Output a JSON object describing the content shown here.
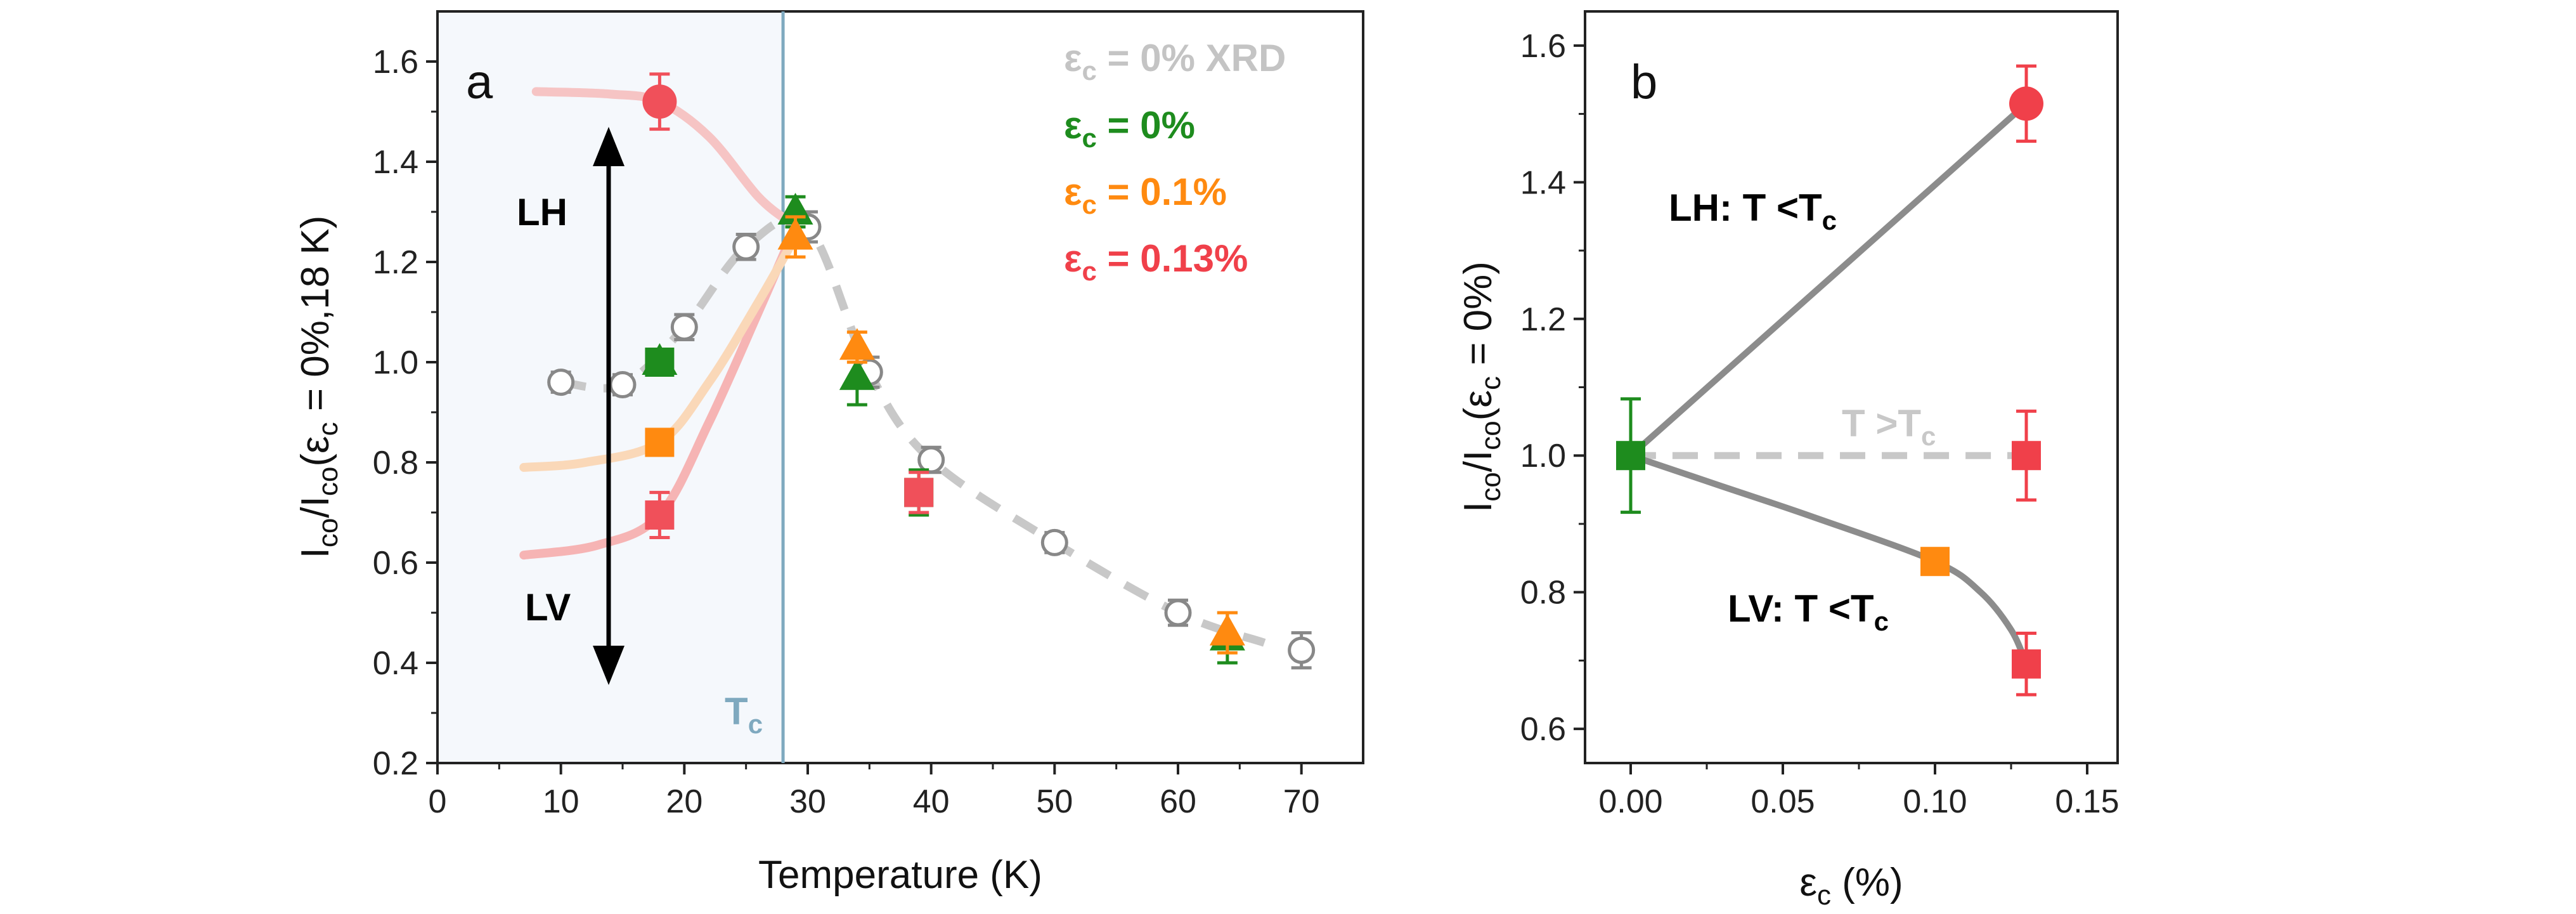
{
  "chart_data": [
    {
      "type": "scatter",
      "panel_label": "a",
      "xlabel": "Temperature (K)",
      "ylabel": {
        "a": "I",
        "b": "co",
        "c": "/I",
        "d": "co",
        "e": "(ε",
        "f": "c",
        "g": " = 0%,18 K)"
      },
      "xlim": [
        0,
        75
      ],
      "ylim": [
        0.2,
        1.7
      ],
      "xticks": [
        "0",
        "10",
        "20",
        "30",
        "40",
        "50",
        "60",
        "70"
      ],
      "xtick_values": [
        0,
        10,
        20,
        30,
        40,
        50,
        60,
        70
      ],
      "yticks": [
        "0.2",
        "0.4",
        "0.6",
        "0.8",
        "1.0",
        "1.2",
        "1.4",
        "1.6"
      ],
      "ytick_values": [
        0.2,
        0.4,
        0.6,
        0.8,
        1.0,
        1.2,
        1.4,
        1.6
      ],
      "tc_value": 28,
      "tc_label": {
        "main": "T",
        "sub": "c"
      },
      "annotations": {
        "lh": "LH",
        "lv": "LV"
      },
      "legend": [
        {
          "prefix": "ε",
          "sub": "c",
          "text": " = 0% XRD",
          "color": "#c4c4c4"
        },
        {
          "prefix": "ε",
          "sub": "c",
          "text": " = 0%",
          "color": "#1e8c1e"
        },
        {
          "prefix": "ε",
          "sub": "c",
          "text": " = 0.1%",
          "color": "#ff8a10"
        },
        {
          "prefix": "ε",
          "sub": "c",
          "text": " = 0.13%",
          "color": "#f0404a"
        }
      ],
      "series": [
        {
          "name": "ε_c = 0% XRD",
          "marker": "open-circle",
          "color": "#888888",
          "x": [
            10,
            15,
            20,
            25,
            30,
            35,
            40,
            50,
            60,
            70
          ],
          "y": [
            0.96,
            0.955,
            1.07,
            1.23,
            1.27,
            0.98,
            0.805,
            0.64,
            0.5,
            0.425
          ],
          "err": [
            0.02,
            0.02,
            0.025,
            0.025,
            0.03,
            0.03,
            0.025,
            0.02,
            0.025,
            0.035
          ]
        },
        {
          "name": "ε_c = 0%",
          "marker": "triangle",
          "color": "#1e8c1e",
          "x": [
            18,
            29,
            34,
            64
          ],
          "y": [
            1.0,
            1.3,
            0.97,
            0.45
          ],
          "err": [
            0.025,
            0.03,
            0.055,
            0.05
          ]
        },
        {
          "name": "ε_c = 0% square",
          "marker": "square",
          "color": "#1e8c1e",
          "x": [
            18,
            39
          ],
          "y": [
            1.0,
            0.74
          ],
          "err": [
            0.02,
            0.045
          ]
        },
        {
          "name": "ε_c = 0.1%",
          "marker": "triangle",
          "color": "#ff8a10",
          "x": [
            29,
            34,
            64
          ],
          "y": [
            1.25,
            1.03,
            0.46
          ],
          "err": [
            0.04,
            0.03,
            0.04
          ]
        },
        {
          "name": "ε_c = 0.1% square",
          "marker": "square",
          "color": "#ff8a10",
          "x": [
            18
          ],
          "y": [
            0.84
          ],
          "err": [
            0.01
          ]
        },
        {
          "name": "ε_c = 0.13%",
          "marker": "circle",
          "color": "#f0505a",
          "x": [
            18
          ],
          "y": [
            1.52
          ],
          "err": [
            0.055
          ]
        },
        {
          "name": "ε_c = 0.13% square",
          "marker": "square",
          "color": "#f0505a",
          "x": [
            18,
            39
          ],
          "y": [
            0.695,
            0.74
          ],
          "err": [
            0.045,
            0.04
          ]
        }
      ],
      "guide_curves": [
        {
          "name": "xrd-guide",
          "color": "#c8c8c8",
          "dashed": true,
          "x": [
            10,
            15,
            20,
            25,
            30,
            35,
            40,
            50,
            60,
            67
          ],
          "y": [
            0.96,
            0.955,
            1.07,
            1.23,
            1.27,
            0.98,
            0.805,
            0.64,
            0.5,
            0.44
          ]
        },
        {
          "name": "red-guide",
          "color": "#f6c4c4",
          "dashed": false,
          "x": [
            8,
            14,
            18,
            22,
            26,
            28.5
          ],
          "y": [
            1.54,
            1.535,
            1.52,
            1.45,
            1.33,
            1.28
          ]
        },
        {
          "name": "red-low-guide",
          "color": "#f6b4b4",
          "dashed": false,
          "x": [
            7,
            13,
            18,
            22,
            26,
            29
          ],
          "y": [
            0.615,
            0.635,
            0.695,
            0.88,
            1.1,
            1.27
          ]
        },
        {
          "name": "orange-guide",
          "color": "#fad8b8",
          "dashed": false,
          "x": [
            7,
            12,
            18,
            22,
            26,
            29
          ],
          "y": [
            0.79,
            0.8,
            0.84,
            0.96,
            1.12,
            1.25
          ]
        }
      ]
    },
    {
      "type": "scatter",
      "panel_label": "b",
      "xlabel": {
        "main": "ε",
        "sub": "c",
        "rest": " (%)"
      },
      "ylabel": {
        "a": "I",
        "b": "co",
        "c": "/I",
        "d": "co",
        "e": "(ε",
        "f": "c",
        "g": " = 0%)"
      },
      "xlim": [
        -0.015,
        0.16
      ],
      "ylim": [
        0.55,
        1.65
      ],
      "xticks": [
        "0.00",
        "0.05",
        "0.10",
        "0.15"
      ],
      "xtick_values": [
        0,
        0.05,
        0.1,
        0.15
      ],
      "yticks": [
        "0.6",
        "0.8",
        "1.0",
        "1.2",
        "1.4",
        "1.6"
      ],
      "ytick_values": [
        0.6,
        0.8,
        1.0,
        1.2,
        1.4,
        1.6
      ],
      "annotations": {
        "lh": {
          "main": "LH: T <T",
          "sub": "c"
        },
        "lv": {
          "main": "LV: T <T",
          "sub": "c"
        },
        "t_above": {
          "main": "T >T",
          "sub": "c"
        }
      },
      "series": [
        {
          "name": "ε_c = 0%",
          "marker": "square",
          "color": "#1e8c1e",
          "x": [
            0
          ],
          "y": [
            1.0
          ],
          "err": [
            0.083
          ]
        },
        {
          "name": "ε_c = 0.1%",
          "marker": "square",
          "color": "#ff8a10",
          "x": [
            0.1
          ],
          "y": [
            0.845
          ],
          "err": [
            0.01
          ]
        },
        {
          "name": "LH T<Tc",
          "marker": "circle",
          "color": "#f0404a",
          "x": [
            0.13
          ],
          "y": [
            1.515
          ],
          "err": [
            0.055
          ]
        },
        {
          "name": "T>Tc",
          "marker": "square",
          "color": "#f0404a",
          "x": [
            0.13
          ],
          "y": [
            1.0
          ],
          "err": [
            0.065
          ]
        },
        {
          "name": "LV T<Tc",
          "marker": "square",
          "color": "#f0404a",
          "x": [
            0.13
          ],
          "y": [
            0.695
          ],
          "err": [
            0.045
          ]
        }
      ],
      "lines": [
        {
          "name": "lh-line",
          "color": "#8c8c8c",
          "dashed": false,
          "x": [
            0,
            0.13
          ],
          "y": [
            1.0,
            1.515
          ]
        },
        {
          "name": "t-above-line",
          "color": "#c8c8c8",
          "dashed": true,
          "x": [
            0,
            0.13
          ],
          "y": [
            1.0,
            1.0
          ]
        },
        {
          "name": "lv-curve",
          "color": "#8c8c8c",
          "dashed": false,
          "x": [
            0,
            0.03,
            0.06,
            0.1,
            0.115,
            0.125,
            0.13
          ],
          "y": [
            1.0,
            0.955,
            0.91,
            0.845,
            0.8,
            0.745,
            0.695
          ]
        }
      ]
    }
  ]
}
